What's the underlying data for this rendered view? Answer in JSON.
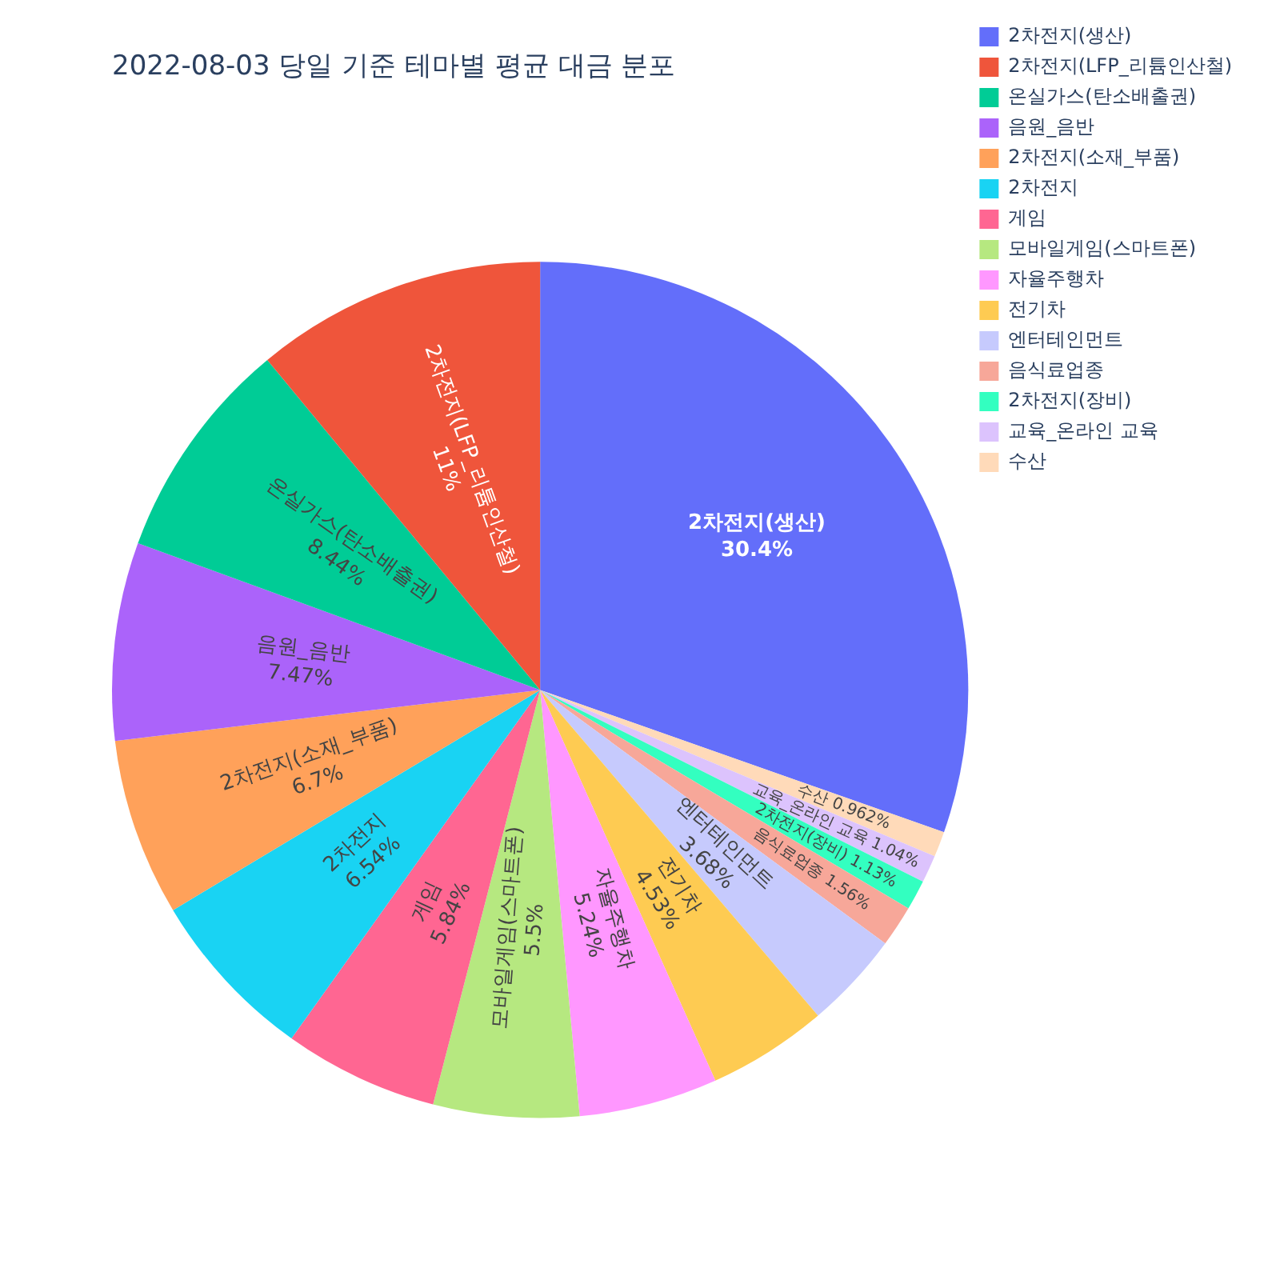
{
  "chart_data": {
    "type": "pie",
    "title": "2022-08-03 당일 기준 테마별 평균 대금 분포",
    "categories": [
      "2차전지(생산)",
      "2차전지(LFP_리튬인산철)",
      "온실가스(탄소배출권)",
      "음원_음반",
      "2차전지(소재_부품)",
      "2차전지",
      "게임",
      "모바일게임(스마트폰)",
      "자율주행차",
      "전기차",
      "엔터테인먼트",
      "음식료업종",
      "2차전지(장비)",
      "교육_온라인 교육",
      "수산"
    ],
    "values": [
      30.4,
      11,
      8.44,
      7.47,
      6.7,
      6.54,
      5.84,
      5.5,
      5.24,
      4.53,
      3.68,
      1.56,
      1.13,
      1.04,
      0.962
    ],
    "value_labels": [
      "30.4%",
      "11%",
      "8.44%",
      "7.47%",
      "6.7%",
      "6.54%",
      "5.84%",
      "5.5%",
      "5.24%",
      "4.53%",
      "3.68%",
      "1.56%",
      "1.13%",
      "1.04%",
      "0.962%"
    ],
    "colors": [
      "#636efa",
      "#ef553b",
      "#00cc96",
      "#ab63fa",
      "#ffa15a",
      "#19d3f3",
      "#ff6692",
      "#b6e880",
      "#ff97ff",
      "#fecb52",
      "#c6cafd",
      "#f7a799",
      "#33ffc0",
      "#dcc3fd",
      "#ffdab9"
    ],
    "legend": "top right"
  }
}
